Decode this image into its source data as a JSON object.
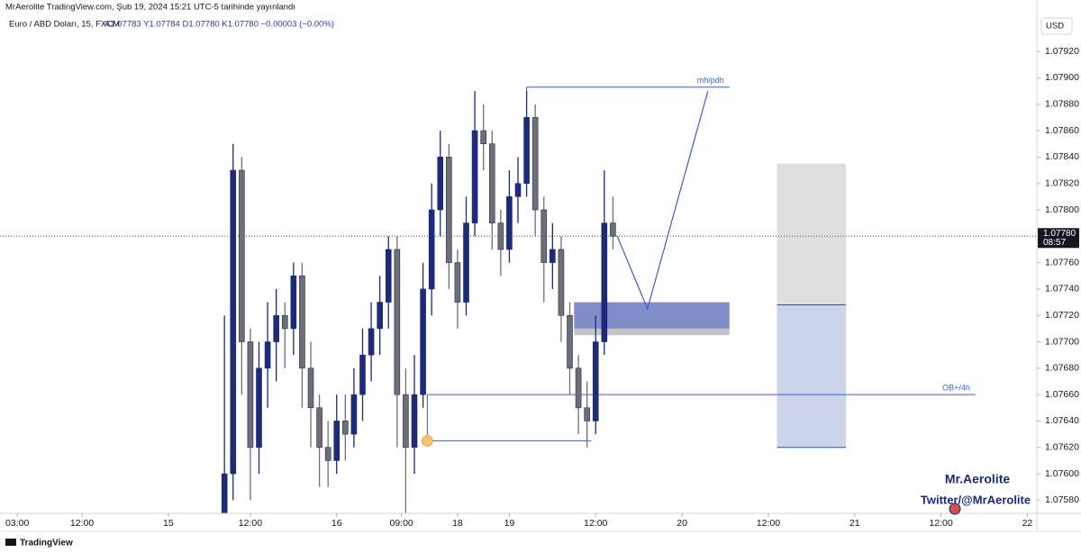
{
  "header": {
    "publisher": "MrAerolite TradingView.com, Şub 19, 2024 15:21 UTC-5 tarihinde yayınlandı",
    "symbol": "Euro / ABD Doları, 15, FXCM",
    "ohlc": "A1.07783 Y1.07784 D1.07780 K1.07780 −0.00003 (−0.00%)"
  },
  "currency": "USD",
  "watermark": {
    "name": "Mr.Aerolite",
    "twitter": "Twitter/@MrAerolite"
  },
  "footer": "TradingView",
  "chart_data": {
    "type": "candlestick",
    "up_color": "#1c2a78",
    "down_color": "#6f6f6f",
    "xlim": [
      0,
      240
    ],
    "ylim": [
      1.07959,
      1.0757
    ],
    "xticks": [
      {
        "value": 4,
        "label": "03:00"
      },
      {
        "value": 19,
        "label": "12:00"
      },
      {
        "value": 39,
        "label": "15"
      },
      {
        "value": 58,
        "label": "12:00"
      },
      {
        "value": 78,
        "label": "16"
      },
      {
        "value": 93,
        "label": "09:00"
      },
      {
        "value": 106,
        "label": "18"
      },
      {
        "value": 118,
        "label": "19"
      },
      {
        "value": 138,
        "label": "12:00"
      },
      {
        "value": 158,
        "label": "20"
      },
      {
        "value": 178,
        "label": "12:00"
      },
      {
        "value": 198,
        "label": "21"
      },
      {
        "value": 218,
        "label": "12:00"
      },
      {
        "value": 238,
        "label": "22"
      }
    ],
    "yticks": [
      {
        "value": 1.0792,
        "label": "1.07920"
      },
      {
        "value": 1.079,
        "label": "1.07900"
      },
      {
        "value": 1.0788,
        "label": "1.07880"
      },
      {
        "value": 1.0786,
        "label": "1.07860"
      },
      {
        "value": 1.0784,
        "label": "1.07840"
      },
      {
        "value": 1.0782,
        "label": "1.07820"
      },
      {
        "value": 1.078,
        "label": "1.07800"
      },
      {
        "value": 1.0776,
        "label": "1.07760"
      },
      {
        "value": 1.0774,
        "label": "1.07740"
      },
      {
        "value": 1.0772,
        "label": "1.07720"
      },
      {
        "value": 1.077,
        "label": "1.07700"
      },
      {
        "value": 1.0768,
        "label": "1.07680"
      },
      {
        "value": 1.0766,
        "label": "1.07660"
      },
      {
        "value": 1.0764,
        "label": "1.07640"
      },
      {
        "value": 1.0762,
        "label": "1.07620"
      },
      {
        "value": 1.076,
        "label": "1.07600"
      },
      {
        "value": 1.0758,
        "label": "1.07580"
      }
    ],
    "last_price": {
      "value": 1.0778,
      "label": "1.07780"
    },
    "countdown": "08:57",
    "x": [
      52,
      54,
      56,
      58,
      60,
      62,
      64,
      66,
      68,
      70,
      72,
      74,
      76,
      78,
      80,
      82,
      84,
      86,
      88,
      90,
      92,
      94,
      96,
      98,
      100,
      102,
      104,
      106,
      108,
      110,
      112,
      114,
      116,
      118,
      120,
      122,
      124,
      126,
      128,
      130,
      132,
      134,
      136,
      138,
      140,
      142
    ],
    "open": [
      1.0757,
      1.076,
      1.0783,
      1.077,
      1.0762,
      1.0768,
      1.077,
      1.0772,
      1.0771,
      1.0775,
      1.0768,
      1.0765,
      1.0762,
      1.0761,
      1.0764,
      1.0763,
      1.0766,
      1.0769,
      1.0771,
      1.0773,
      1.0777,
      1.0766,
      1.0762,
      1.0766,
      1.0774,
      1.078,
      1.0784,
      1.0776,
      1.0773,
      1.0779,
      1.0786,
      1.0785,
      1.0779,
      1.0777,
      1.0781,
      1.0782,
      1.0787,
      1.078,
      1.0776,
      1.0777,
      1.0772,
      1.0768,
      1.0765,
      1.0764,
      1.077,
      1.0779
    ],
    "high": [
      1.0772,
      1.0785,
      1.0784,
      1.0771,
      1.077,
      1.0773,
      1.0774,
      1.0773,
      1.0776,
      1.0776,
      1.077,
      1.0766,
      1.0764,
      1.0766,
      1.0766,
      1.0768,
      1.0771,
      1.0773,
      1.0775,
      1.0778,
      1.0778,
      1.0768,
      1.0769,
      1.0776,
      1.0782,
      1.0786,
      1.0785,
      1.0777,
      1.0781,
      1.0789,
      1.0788,
      1.0786,
      1.078,
      1.0783,
      1.0784,
      1.0789,
      1.0788,
      1.0781,
      1.0779,
      1.0778,
      1.0773,
      1.0769,
      1.0767,
      1.0772,
      1.0783,
      1.0781
    ],
    "low": [
      1.0755,
      1.0758,
      1.0766,
      1.0758,
      1.076,
      1.0765,
      1.0767,
      1.0768,
      1.0769,
      1.0765,
      1.0762,
      1.0759,
      1.0759,
      1.076,
      1.0761,
      1.0762,
      1.0764,
      1.0767,
      1.0769,
      1.0771,
      1.0762,
      1.0755,
      1.076,
      1.0765,
      1.0772,
      1.0778,
      1.0774,
      1.0771,
      1.0772,
      1.0778,
      1.0783,
      1.0777,
      1.0775,
      1.0776,
      1.0779,
      1.0781,
      1.0778,
      1.0773,
      1.0774,
      1.077,
      1.0766,
      1.0763,
      1.0762,
      1.0763,
      1.0769,
      1.0777
    ],
    "close": [
      1.076,
      1.0783,
      1.077,
      1.0762,
      1.0768,
      1.077,
      1.0772,
      1.0771,
      1.0775,
      1.0768,
      1.0765,
      1.0762,
      1.0761,
      1.0764,
      1.0763,
      1.0766,
      1.0769,
      1.0771,
      1.0773,
      1.0777,
      1.0766,
      1.0762,
      1.0766,
      1.0774,
      1.078,
      1.0784,
      1.0776,
      1.0773,
      1.0779,
      1.0786,
      1.0785,
      1.0779,
      1.0777,
      1.0781,
      1.0782,
      1.0787,
      1.078,
      1.0776,
      1.0777,
      1.0772,
      1.0768,
      1.0765,
      1.0764,
      1.077,
      1.0779,
      1.0778
    ],
    "drawings": {
      "line_color": "#3b5fc8",
      "mh_pdh": {
        "label": "mh/pdh",
        "price": 1.07893,
        "x": [
          122,
          169
        ]
      },
      "ob": {
        "label": "OB+/4h",
        "price": 1.0766,
        "x": [
          99,
          226
        ]
      },
      "low_line": {
        "price": 1.07625,
        "x": [
          99,
          137
        ]
      },
      "zone": {
        "top": 1.0773,
        "bottom": 1.0771,
        "shadow": 1.07705,
        "x": [
          133,
          169
        ],
        "color": "#7f8ec9"
      },
      "position": {
        "target": 1.07835,
        "entry": 1.07728,
        "stop": 1.0762,
        "x": [
          180,
          196
        ]
      },
      "projection": {
        "x": [
          143,
          150,
          164
        ],
        "y": [
          1.0778,
          1.07725,
          1.0789
        ]
      }
    }
  }
}
